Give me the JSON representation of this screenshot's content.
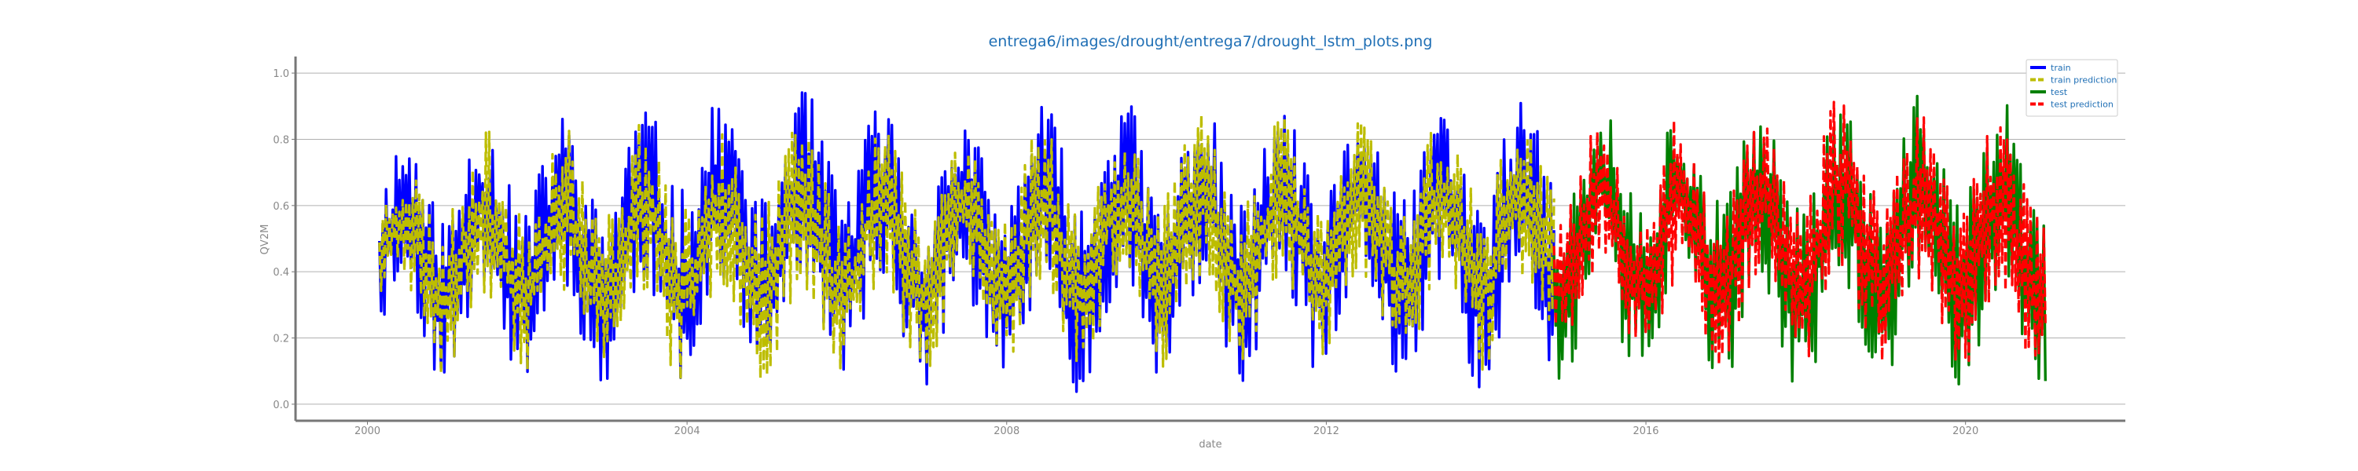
{
  "chart_data": {
    "type": "line",
    "title": "entrega6/images/drought/entrega7/drought_lstm_plots.png",
    "xlabel": "date",
    "ylabel": "QV2M",
    "xlim": [
      1999.1,
      2022.0
    ],
    "ylim": [
      -0.05,
      1.05
    ],
    "x_ticks": [
      2000,
      2004,
      2008,
      2012,
      2016,
      2020
    ],
    "x_tick_labels": [
      "2000",
      "2004",
      "2008",
      "2012",
      "2016",
      "2020"
    ],
    "y_ticks": [
      0.0,
      0.2,
      0.4,
      0.6,
      0.8,
      1.0
    ],
    "y_tick_labels": [
      "0.0",
      "0.2",
      "0.4",
      "0.6",
      "0.8",
      "1.0"
    ],
    "grid": "horizontal",
    "legend_position": "top-right",
    "split_year": 2014.85,
    "series": [
      {
        "name": "train",
        "color": "#0000ff",
        "style": "solid",
        "x_range": [
          2000.15,
          2014.85
        ],
        "points_per_year": 48,
        "seed": 11,
        "envelope_high": [
          [
            2000.15,
            0.78
          ],
          [
            2000.6,
            0.84
          ],
          [
            2001.0,
            0.86
          ],
          [
            2002.0,
            0.88
          ],
          [
            2003.0,
            0.89
          ],
          [
            2004.0,
            0.96
          ],
          [
            2005.0,
            0.91
          ],
          [
            2005.7,
            0.98
          ],
          [
            2007.0,
            0.88
          ],
          [
            2008.0,
            0.91
          ],
          [
            2009.5,
            0.96
          ],
          [
            2010.0,
            0.94
          ],
          [
            2011.0,
            0.91
          ],
          [
            2012.0,
            0.91
          ],
          [
            2013.0,
            0.92
          ],
          [
            2014.0,
            0.93
          ],
          [
            2014.85,
            0.94
          ]
        ],
        "envelope_low": [
          [
            2000.15,
            0.13
          ],
          [
            2000.5,
            0.1
          ],
          [
            2001.0,
            0.05
          ],
          [
            2002.0,
            0.08
          ],
          [
            2003.0,
            0.03
          ],
          [
            2004.0,
            0.08
          ],
          [
            2005.0,
            0.07
          ],
          [
            2006.0,
            0.09
          ],
          [
            2007.0,
            0.05
          ],
          [
            2008.0,
            0.03
          ],
          [
            2009.0,
            0.02
          ],
          [
            2010.0,
            0.05
          ],
          [
            2011.0,
            0.05
          ],
          [
            2012.0,
            0.07
          ],
          [
            2013.0,
            0.05
          ],
          [
            2014.0,
            0.03
          ],
          [
            2014.6,
            0.0
          ],
          [
            2014.85,
            0.04
          ]
        ]
      },
      {
        "name": "train prediction",
        "color": "#bdbd00",
        "style": "dashed",
        "x_range": [
          2000.15,
          2014.85
        ],
        "points_per_year": 48,
        "seed": 23,
        "envelope_high": [
          [
            2000.15,
            0.7
          ],
          [
            2001.0,
            0.82
          ],
          [
            2002.0,
            0.86
          ],
          [
            2003.0,
            0.86
          ],
          [
            2004.0,
            0.88
          ],
          [
            2005.0,
            0.88
          ],
          [
            2006.0,
            0.87
          ],
          [
            2007.0,
            0.86
          ],
          [
            2008.0,
            0.86
          ],
          [
            2009.0,
            0.86
          ],
          [
            2010.0,
            0.9
          ],
          [
            2011.0,
            0.88
          ],
          [
            2012.0,
            0.87
          ],
          [
            2013.0,
            0.88
          ],
          [
            2014.0,
            0.88
          ],
          [
            2014.85,
            0.9
          ]
        ],
        "envelope_low": [
          [
            2000.15,
            0.22
          ],
          [
            2001.0,
            0.06
          ],
          [
            2002.0,
            0.06
          ],
          [
            2003.0,
            0.05
          ],
          [
            2004.0,
            0.06
          ],
          [
            2005.0,
            0.07
          ],
          [
            2006.0,
            0.08
          ],
          [
            2007.0,
            0.08
          ],
          [
            2008.0,
            0.1
          ],
          [
            2009.0,
            0.1
          ],
          [
            2010.0,
            0.1
          ],
          [
            2011.0,
            0.12
          ],
          [
            2012.0,
            0.12
          ],
          [
            2013.0,
            0.12
          ],
          [
            2014.0,
            0.1
          ],
          [
            2014.85,
            0.12
          ]
        ]
      },
      {
        "name": "test",
        "color": "#008000",
        "style": "solid",
        "x_range": [
          2014.85,
          2021.0
        ],
        "points_per_year": 48,
        "seed": 37,
        "envelope_high": [
          [
            2014.85,
            0.9
          ],
          [
            2015.5,
            0.99
          ],
          [
            2016.0,
            0.95
          ],
          [
            2017.0,
            0.93
          ],
          [
            2018.0,
            0.92
          ],
          [
            2019.0,
            0.9
          ],
          [
            2019.5,
            0.96
          ],
          [
            2020.0,
            0.93
          ],
          [
            2020.5,
            0.93
          ],
          [
            2021.0,
            0.84
          ]
        ],
        "envelope_low": [
          [
            2014.85,
            0.07
          ],
          [
            2015.5,
            0.03
          ],
          [
            2016.0,
            0.05
          ],
          [
            2017.0,
            0.05
          ],
          [
            2018.0,
            0.02
          ],
          [
            2019.0,
            0.05
          ],
          [
            2020.0,
            0.04
          ],
          [
            2021.0,
            0.05
          ]
        ]
      },
      {
        "name": "test prediction",
        "color": "#ff0000",
        "style": "dashed",
        "x_range": [
          2014.85,
          2021.0
        ],
        "points_per_year": 48,
        "seed": 53,
        "envelope_high": [
          [
            2014.85,
            0.78
          ],
          [
            2015.5,
            0.9
          ],
          [
            2016.0,
            0.88
          ],
          [
            2017.0,
            0.88
          ],
          [
            2018.0,
            0.88
          ],
          [
            2018.5,
            0.98
          ],
          [
            2019.0,
            0.86
          ],
          [
            2020.0,
            0.9
          ],
          [
            2021.0,
            0.84
          ]
        ],
        "envelope_low": [
          [
            2014.85,
            0.22
          ],
          [
            2015.5,
            0.15
          ],
          [
            2016.0,
            0.12
          ],
          [
            2016.6,
            0.02
          ],
          [
            2017.0,
            0.12
          ],
          [
            2018.0,
            0.1
          ],
          [
            2019.0,
            0.12
          ],
          [
            2020.0,
            0.1
          ],
          [
            2020.7,
            0.04
          ],
          [
            2021.0,
            0.1
          ]
        ]
      }
    ]
  }
}
